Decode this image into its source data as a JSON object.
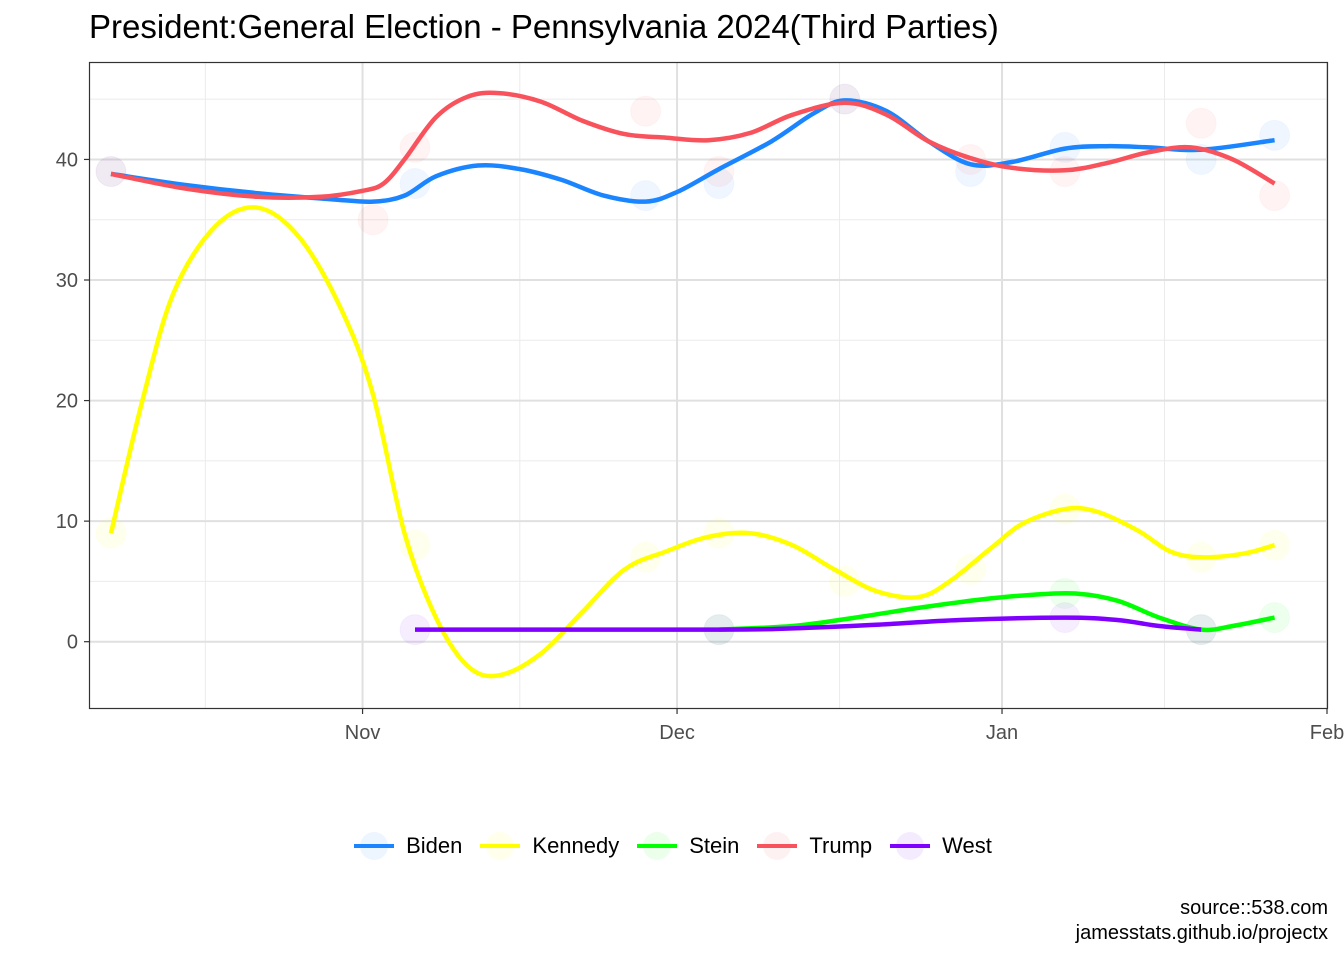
{
  "chart_data": {
    "type": "line",
    "title": "President:General Election - Pennsylvania 2024(Third Parties)",
    "xlabel": "",
    "ylabel": "",
    "x_range": [
      "2023-10-06",
      "2024-02-01"
    ],
    "ylim": [
      -5.5,
      48
    ],
    "y_ticks": [
      0,
      10,
      20,
      30,
      40
    ],
    "x_ticks": [
      {
        "date": "2023-11-01",
        "label": "Nov"
      },
      {
        "date": "2023-12-01",
        "label": "Dec"
      },
      {
        "date": "2024-01-01",
        "label": "Jan"
      },
      {
        "date": "2024-02-01",
        "label": "Feb"
      }
    ],
    "grid": true,
    "legend_position": "bottom",
    "series": [
      {
        "name": "Biden",
        "color": "#1a85ff",
        "points": [
          [
            "2023-10-08",
            39
          ],
          [
            "2023-11-06",
            38
          ],
          [
            "2023-11-28",
            37
          ],
          [
            "2023-12-05",
            38
          ],
          [
            "2023-12-17",
            45
          ],
          [
            "2023-12-29",
            39
          ],
          [
            "2024-01-07",
            41
          ],
          [
            "2024-01-20",
            40
          ],
          [
            "2024-01-27",
            42
          ]
        ],
        "smooth": [
          [
            "2023-10-08",
            38.8
          ],
          [
            "2023-10-15",
            37.9
          ],
          [
            "2023-10-22",
            37.2
          ],
          [
            "2023-10-29",
            36.7
          ],
          [
            "2023-11-02",
            36.5
          ],
          [
            "2023-11-05",
            37.0
          ],
          [
            "2023-11-08",
            38.6
          ],
          [
            "2023-11-12",
            39.5
          ],
          [
            "2023-11-16",
            39.2
          ],
          [
            "2023-11-20",
            38.3
          ],
          [
            "2023-11-24",
            37.0
          ],
          [
            "2023-11-28",
            36.5
          ],
          [
            "2023-12-01",
            37.3
          ],
          [
            "2023-12-05",
            39.2
          ],
          [
            "2023-12-10",
            41.5
          ],
          [
            "2023-12-14",
            43.8
          ],
          [
            "2023-12-17",
            44.9
          ],
          [
            "2023-12-21",
            44.0
          ],
          [
            "2023-12-25",
            41.5
          ],
          [
            "2023-12-29",
            39.6
          ],
          [
            "2024-01-02",
            39.8
          ],
          [
            "2024-01-07",
            40.9
          ],
          [
            "2024-01-11",
            41.1
          ],
          [
            "2024-01-15",
            41.0
          ],
          [
            "2024-01-20",
            40.8
          ],
          [
            "2024-01-27",
            41.6
          ]
        ]
      },
      {
        "name": "Kennedy",
        "color": "#ffff00",
        "points": [
          [
            "2023-10-08",
            9
          ],
          [
            "2023-11-06",
            8
          ],
          [
            "2023-11-28",
            7
          ],
          [
            "2023-12-05",
            9
          ],
          [
            "2023-12-17",
            5
          ],
          [
            "2023-12-29",
            6
          ],
          [
            "2024-01-07",
            11
          ],
          [
            "2024-01-20",
            7
          ],
          [
            "2024-01-27",
            8
          ]
        ],
        "smooth": [
          [
            "2023-10-08",
            9
          ],
          [
            "2023-10-11",
            20
          ],
          [
            "2023-10-14",
            29
          ],
          [
            "2023-10-18",
            34.5
          ],
          [
            "2023-10-22",
            36
          ],
          [
            "2023-10-26",
            33.5
          ],
          [
            "2023-10-30",
            27.5
          ],
          [
            "2023-11-02",
            20.5
          ],
          [
            "2023-11-05",
            9
          ],
          [
            "2023-11-08",
            2
          ],
          [
            "2023-11-11",
            -2
          ],
          [
            "2023-11-14",
            -2.8
          ],
          [
            "2023-11-18",
            -1
          ],
          [
            "2023-11-22",
            2.5
          ],
          [
            "2023-11-26",
            6
          ],
          [
            "2023-11-30",
            7.5
          ],
          [
            "2023-12-04",
            8.7
          ],
          [
            "2023-12-08",
            9
          ],
          [
            "2023-12-12",
            8
          ],
          [
            "2023-12-16",
            6
          ],
          [
            "2023-12-20",
            4.2
          ],
          [
            "2023-12-24",
            3.7
          ],
          [
            "2023-12-27",
            5
          ],
          [
            "2023-12-31",
            7.8
          ],
          [
            "2024-01-03",
            9.8
          ],
          [
            "2024-01-07",
            11
          ],
          [
            "2024-01-10",
            10.8
          ],
          [
            "2024-01-14",
            9.2
          ],
          [
            "2024-01-17",
            7.5
          ],
          [
            "2024-01-20",
            7
          ],
          [
            "2024-01-24",
            7.3
          ],
          [
            "2024-01-27",
            8
          ]
        ]
      },
      {
        "name": "Stein",
        "color": "#00ff00",
        "points": [
          [
            "2023-12-05",
            1
          ],
          [
            "2024-01-07",
            4
          ],
          [
            "2024-01-20",
            1
          ],
          [
            "2024-01-27",
            2
          ]
        ],
        "smooth": [
          [
            "2023-12-05",
            1
          ],
          [
            "2023-12-12",
            1.3
          ],
          [
            "2023-12-18",
            2
          ],
          [
            "2023-12-24",
            2.8
          ],
          [
            "2023-12-30",
            3.5
          ],
          [
            "2024-01-04",
            3.9
          ],
          [
            "2024-01-08",
            4
          ],
          [
            "2024-01-12",
            3.4
          ],
          [
            "2024-01-16",
            2
          ],
          [
            "2024-01-20",
            1
          ],
          [
            "2024-01-23",
            1.3
          ],
          [
            "2024-01-27",
            2
          ]
        ]
      },
      {
        "name": "Trump",
        "color": "#f8525c",
        "points": [
          [
            "2023-10-08",
            39
          ],
          [
            "2023-11-02",
            35
          ],
          [
            "2023-11-06",
            41
          ],
          [
            "2023-11-28",
            44
          ],
          [
            "2023-12-05",
            39
          ],
          [
            "2023-12-17",
            45
          ],
          [
            "2023-12-29",
            40
          ],
          [
            "2024-01-07",
            39
          ],
          [
            "2024-01-20",
            43
          ],
          [
            "2024-01-27",
            37
          ]
        ],
        "smooth": [
          [
            "2023-10-08",
            38.8
          ],
          [
            "2023-10-15",
            37.6
          ],
          [
            "2023-10-22",
            36.9
          ],
          [
            "2023-10-28",
            36.9
          ],
          [
            "2023-11-01",
            37.4
          ],
          [
            "2023-11-03",
            38.0
          ],
          [
            "2023-11-05",
            40.0
          ],
          [
            "2023-11-08",
            43.5
          ],
          [
            "2023-11-11",
            45.2
          ],
          [
            "2023-11-14",
            45.5
          ],
          [
            "2023-11-18",
            44.8
          ],
          [
            "2023-11-22",
            43.2
          ],
          [
            "2023-11-26",
            42.1
          ],
          [
            "2023-11-30",
            41.8
          ],
          [
            "2023-12-04",
            41.6
          ],
          [
            "2023-12-08",
            42.2
          ],
          [
            "2023-12-12",
            43.7
          ],
          [
            "2023-12-17",
            44.7
          ],
          [
            "2023-12-21",
            43.7
          ],
          [
            "2023-12-25",
            41.5
          ],
          [
            "2023-12-29",
            40.1
          ],
          [
            "2024-01-02",
            39.3
          ],
          [
            "2024-01-07",
            39.1
          ],
          [
            "2024-01-11",
            39.7
          ],
          [
            "2024-01-15",
            40.6
          ],
          [
            "2024-01-19",
            41.0
          ],
          [
            "2024-01-23",
            40.0
          ],
          [
            "2024-01-27",
            38.0
          ]
        ]
      },
      {
        "name": "West",
        "color": "#8000ff",
        "points": [
          [
            "2023-11-06",
            1
          ],
          [
            "2023-12-05",
            1
          ],
          [
            "2024-01-07",
            2
          ],
          [
            "2024-01-20",
            1
          ]
        ],
        "smooth": [
          [
            "2023-11-06",
            1
          ],
          [
            "2023-12-05",
            1
          ],
          [
            "2023-12-12",
            1.1
          ],
          [
            "2023-12-20",
            1.4
          ],
          [
            "2023-12-28",
            1.8
          ],
          [
            "2024-01-07",
            2
          ],
          [
            "2024-01-12",
            1.8
          ],
          [
            "2024-01-16",
            1.3
          ],
          [
            "2024-01-20",
            1
          ]
        ]
      }
    ]
  },
  "caption": {
    "source": "source::538.com",
    "site": "jamesstats.github.io/projectx"
  }
}
